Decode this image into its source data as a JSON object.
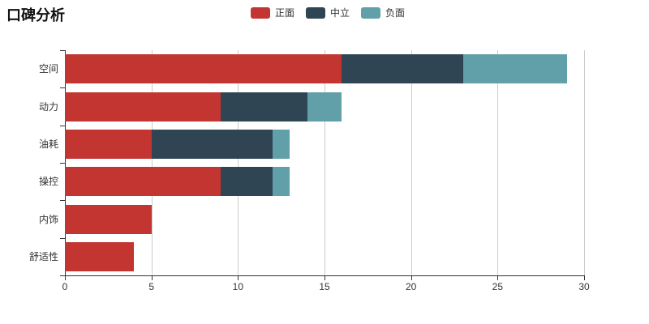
{
  "title": "口碑分析",
  "legend": {
    "items": [
      {
        "label": "正面"
      },
      {
        "label": "中立"
      },
      {
        "label": "负面"
      }
    ]
  },
  "colors": {
    "positive": "#c23531",
    "neutral": "#2f4554",
    "negative": "#61a0a8",
    "axis_line": "#333333",
    "grid_line": "#cccccc",
    "text": "#333333",
    "background": "#ffffff"
  },
  "chart_data": {
    "type": "bar",
    "orientation": "horizontal",
    "stacked": true,
    "title": "口碑分析",
    "categories": [
      "空间",
      "动力",
      "油耗",
      "操控",
      "内饰",
      "舒适性"
    ],
    "series": [
      {
        "name": "正面",
        "color": "#c23531",
        "values": [
          16,
          9,
          5,
          9,
          5,
          4
        ]
      },
      {
        "name": "中立",
        "color": "#2f4554",
        "values": [
          7,
          5,
          7,
          3,
          0,
          0
        ]
      },
      {
        "name": "负面",
        "color": "#61a0a8",
        "values": [
          6,
          2,
          1,
          1,
          0,
          0
        ]
      }
    ],
    "totals": [
      29,
      16,
      13,
      13,
      5,
      4
    ],
    "xlabel": "",
    "ylabel": "",
    "xlim": [
      0,
      30
    ],
    "x_ticks": [
      0,
      5,
      10,
      15,
      20,
      25,
      30
    ],
    "grid": true,
    "legend_position": "top"
  }
}
